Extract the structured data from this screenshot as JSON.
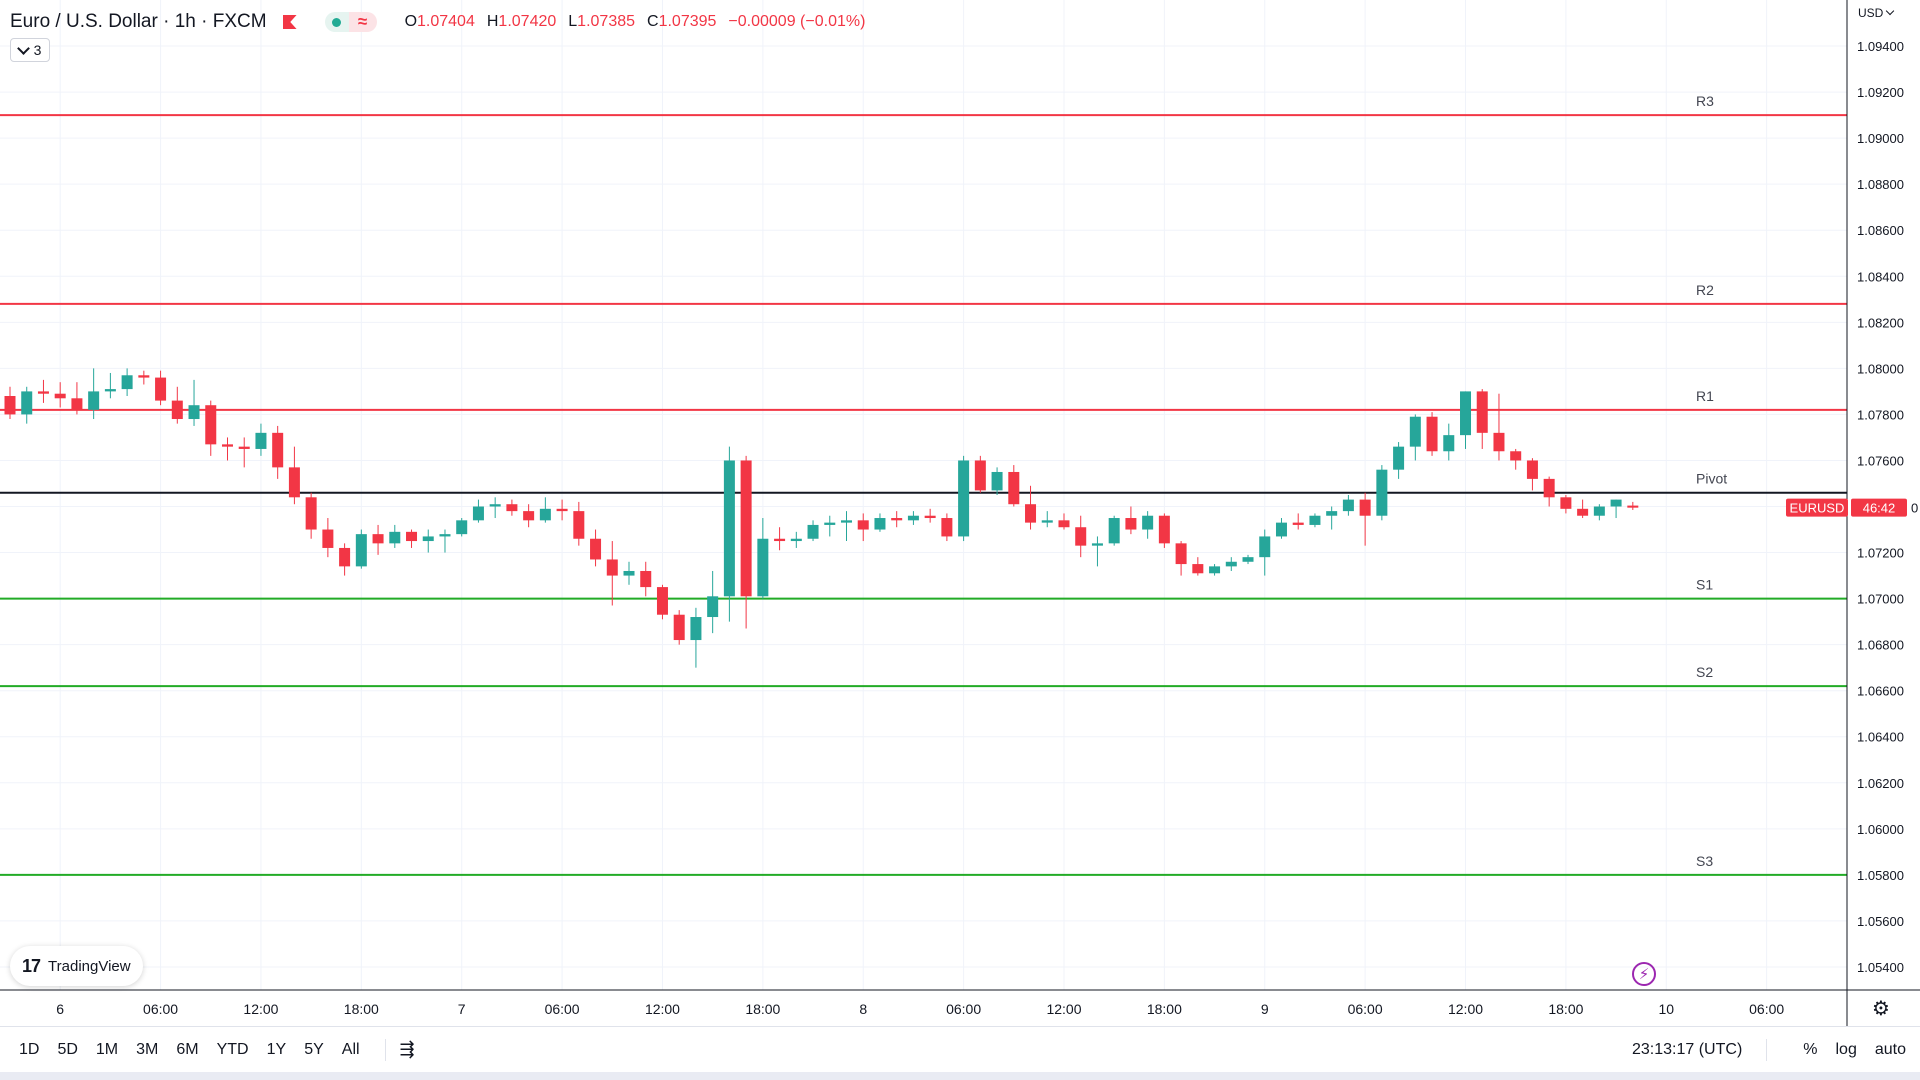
{
  "header": {
    "symbol_title": "Euro / U.S. Dollar · 1h · FXCM",
    "wave_symbol": "≈",
    "ohlc": [
      {
        "label": "O",
        "value": "1.07404"
      },
      {
        "label": "H",
        "value": "1.07420"
      },
      {
        "label": "L",
        "value": "1.07385"
      },
      {
        "label": "C",
        "value": "1.07395"
      }
    ],
    "change": "−0.00009 (−0.01%)",
    "indicator_count": "3",
    "currency": "USD"
  },
  "badges": {
    "symbol": "EURUSD",
    "countdown": "46:42",
    "price_tail": "0"
  },
  "branding": {
    "logo_mark": "17",
    "logo_text": "TradingView"
  },
  "bottom": {
    "periods": [
      "1D",
      "5D",
      "1M",
      "3M",
      "6M",
      "YTD",
      "1Y",
      "5Y",
      "All"
    ],
    "clock": "23:13:17 (UTC)",
    "options": [
      "%",
      "log",
      "auto"
    ]
  },
  "icons": {
    "flag": "flag-icon",
    "status_dot": "market-open-dot-icon",
    "wave": "delayed-data-icon",
    "range": "date-range-icon",
    "bolt": "lightning-icon",
    "settings": "gear-icon"
  },
  "colors": {
    "up": "#26a69a",
    "down": "#f23645",
    "resistance": "#f23645",
    "support": "#22ab26",
    "pivot": "#131722"
  },
  "chart_data": {
    "type": "candlestick",
    "interval": "1h",
    "y_axis": {
      "min": 1.053,
      "max": 1.096,
      "ticks": [
        "1.09400",
        "1.09200",
        "1.09000",
        "1.08800",
        "1.08600",
        "1.08400",
        "1.08200",
        "1.08000",
        "1.07800",
        "1.07600",
        "1.07400",
        "1.07200",
        "1.07000",
        "1.06800",
        "1.06600",
        "1.06400",
        "1.06200",
        "1.06000",
        "1.05800",
        "1.05600",
        "1.05400"
      ]
    },
    "x_axis": {
      "first_bar_time": "2023-01-05T21:00Z",
      "ticks": [
        {
          "label": "6",
          "bar": 3
        },
        {
          "label": "06:00",
          "bar": 9
        },
        {
          "label": "12:00",
          "bar": 15
        },
        {
          "label": "18:00",
          "bar": 21
        },
        {
          "label": "7",
          "bar": 27
        },
        {
          "label": "06:00",
          "bar": 33
        },
        {
          "label": "12:00",
          "bar": 39
        },
        {
          "label": "18:00",
          "bar": 45
        },
        {
          "label": "8",
          "bar": 51
        },
        {
          "label": "06:00",
          "bar": 57
        },
        {
          "label": "12:00",
          "bar": 63
        },
        {
          "label": "18:00",
          "bar": 69
        },
        {
          "label": "9",
          "bar": 75
        },
        {
          "label": "06:00",
          "bar": 81
        },
        {
          "label": "12:00",
          "bar": 87
        },
        {
          "label": "18:00",
          "bar": 93
        },
        {
          "label": "10",
          "bar": 99
        },
        {
          "label": "06:00",
          "bar": 105
        }
      ]
    },
    "levels": [
      {
        "name": "R3",
        "value": 1.091,
        "kind": "resistance"
      },
      {
        "name": "R2",
        "value": 1.0828,
        "kind": "resistance"
      },
      {
        "name": "R1",
        "value": 1.0782,
        "kind": "resistance"
      },
      {
        "name": "Pivot",
        "value": 1.0746,
        "kind": "pivot"
      },
      {
        "name": "S1",
        "value": 1.07,
        "kind": "support"
      },
      {
        "name": "S2",
        "value": 1.0662,
        "kind": "support"
      },
      {
        "name": "S3",
        "value": 1.058,
        "kind": "support"
      }
    ],
    "ohlc": [
      [
        1.0788,
        1.0792,
        1.0778,
        1.078
      ],
      [
        1.078,
        1.0792,
        1.0776,
        1.079
      ],
      [
        1.079,
        1.0795,
        1.0785,
        1.0789
      ],
      [
        1.0789,
        1.0794,
        1.0783,
        1.0787
      ],
      [
        1.0787,
        1.0794,
        1.078,
        1.0782
      ],
      [
        1.0782,
        1.08,
        1.0778,
        1.079
      ],
      [
        1.079,
        1.0798,
        1.0787,
        1.0791
      ],
      [
        1.0791,
        1.08,
        1.0788,
        1.0797
      ],
      [
        1.0797,
        1.0799,
        1.0793,
        1.0796
      ],
      [
        1.0796,
        1.0799,
        1.0784,
        1.0786
      ],
      [
        1.0786,
        1.0792,
        1.0776,
        1.0778
      ],
      [
        1.0778,
        1.0795,
        1.0775,
        1.0784
      ],
      [
        1.0784,
        1.0786,
        1.0762,
        1.0767
      ],
      [
        1.0767,
        1.077,
        1.076,
        1.0766
      ],
      [
        1.0766,
        1.077,
        1.0757,
        1.0765
      ],
      [
        1.0765,
        1.0776,
        1.0762,
        1.0772
      ],
      [
        1.0772,
        1.0775,
        1.0752,
        1.0757
      ],
      [
        1.0757,
        1.0766,
        1.0741,
        1.0744
      ],
      [
        1.0744,
        1.0746,
        1.0726,
        1.073
      ],
      [
        1.073,
        1.0735,
        1.0718,
        1.0722
      ],
      [
        1.0722,
        1.0724,
        1.071,
        1.0714
      ],
      [
        1.0714,
        1.073,
        1.0713,
        1.0728
      ],
      [
        1.0728,
        1.0732,
        1.0719,
        1.0724
      ],
      [
        1.0724,
        1.0732,
        1.0722,
        1.0729
      ],
      [
        1.0729,
        1.073,
        1.0722,
        1.0725
      ],
      [
        1.0725,
        1.073,
        1.072,
        1.0727
      ],
      [
        1.0727,
        1.073,
        1.072,
        1.0728
      ],
      [
        1.0728,
        1.0735,
        1.0727,
        1.0734
      ],
      [
        1.0734,
        1.0743,
        1.0733,
        1.074
      ],
      [
        1.074,
        1.0744,
        1.0735,
        1.0741
      ],
      [
        1.0741,
        1.0743,
        1.0736,
        1.0738
      ],
      [
        1.0738,
        1.0741,
        1.0731,
        1.0734
      ],
      [
        1.0734,
        1.0744,
        1.0733,
        1.0739
      ],
      [
        1.0739,
        1.0743,
        1.0734,
        1.0738
      ],
      [
        1.0738,
        1.0742,
        1.0723,
        1.0726
      ],
      [
        1.0726,
        1.073,
        1.0714,
        1.0717
      ],
      [
        1.0717,
        1.0725,
        1.0697,
        1.071
      ],
      [
        1.071,
        1.0716,
        1.0706,
        1.0712
      ],
      [
        1.0712,
        1.0716,
        1.0701,
        1.0705
      ],
      [
        1.0705,
        1.0706,
        1.0691,
        1.0693
      ],
      [
        1.0693,
        1.0695,
        1.068,
        1.0682
      ],
      [
        1.0682,
        1.0696,
        1.067,
        1.0692
      ],
      [
        1.0692,
        1.0712,
        1.0685,
        1.0701
      ],
      [
        1.0701,
        1.0766,
        1.069,
        1.076
      ],
      [
        1.076,
        1.0762,
        1.0687,
        1.0701
      ],
      [
        1.0701,
        1.0735,
        1.07,
        1.0726
      ],
      [
        1.0726,
        1.0731,
        1.0721,
        1.0725
      ],
      [
        1.0725,
        1.0729,
        1.0722,
        1.0726
      ],
      [
        1.0726,
        1.0734,
        1.0725,
        1.0732
      ],
      [
        1.0732,
        1.0736,
        1.0727,
        1.0733
      ],
      [
        1.0733,
        1.0738,
        1.0725,
        1.0734
      ],
      [
        1.0734,
        1.0737,
        1.0725,
        1.073
      ],
      [
        1.073,
        1.0737,
        1.0729,
        1.0735
      ],
      [
        1.0735,
        1.0738,
        1.0731,
        1.0734
      ],
      [
        1.0734,
        1.0738,
        1.0732,
        1.0736
      ],
      [
        1.0736,
        1.0739,
        1.0733,
        1.0735
      ],
      [
        1.0735,
        1.0737,
        1.0725,
        1.0727
      ],
      [
        1.0727,
        1.0762,
        1.0725,
        1.076
      ],
      [
        1.076,
        1.0762,
        1.0746,
        1.0747
      ],
      [
        1.0747,
        1.0757,
        1.0745,
        1.0755
      ],
      [
        1.0755,
        1.0758,
        1.074,
        1.0741
      ],
      [
        1.0741,
        1.0749,
        1.073,
        1.0733
      ],
      [
        1.0733,
        1.0738,
        1.0731,
        1.0734
      ],
      [
        1.0734,
        1.0737,
        1.073,
        1.0731
      ],
      [
        1.0731,
        1.0736,
        1.0718,
        1.0723
      ],
      [
        1.0723,
        1.0727,
        1.0714,
        1.0724
      ],
      [
        1.0724,
        1.0736,
        1.0723,
        1.0735
      ],
      [
        1.0735,
        1.074,
        1.0728,
        1.073
      ],
      [
        1.073,
        1.0738,
        1.0726,
        1.0736
      ],
      [
        1.0736,
        1.0737,
        1.0722,
        1.0724
      ],
      [
        1.0724,
        1.0725,
        1.071,
        1.0715
      ],
      [
        1.0715,
        1.0718,
        1.071,
        1.0711
      ],
      [
        1.0711,
        1.0715,
        1.071,
        1.0714
      ],
      [
        1.0714,
        1.0718,
        1.0712,
        1.0716
      ],
      [
        1.0716,
        1.0719,
        1.0715,
        1.0718
      ],
      [
        1.0718,
        1.073,
        1.071,
        1.0727
      ],
      [
        1.0727,
        1.0735,
        1.0726,
        1.0733
      ],
      [
        1.0733,
        1.0737,
        1.073,
        1.0732
      ],
      [
        1.0732,
        1.0737,
        1.0731,
        1.0736
      ],
      [
        1.0736,
        1.074,
        1.073,
        1.0738
      ],
      [
        1.0738,
        1.0745,
        1.0736,
        1.0743
      ],
      [
        1.0743,
        1.0746,
        1.0723,
        1.0736
      ],
      [
        1.0736,
        1.0758,
        1.0734,
        1.0756
      ],
      [
        1.0756,
        1.0768,
        1.0752,
        1.0766
      ],
      [
        1.0766,
        1.078,
        1.076,
        1.0779
      ],
      [
        1.0779,
        1.0781,
        1.0762,
        1.0764
      ],
      [
        1.0764,
        1.0776,
        1.076,
        1.0771
      ],
      [
        1.0771,
        1.079,
        1.0765,
        1.079
      ],
      [
        1.079,
        1.0791,
        1.0765,
        1.0772
      ],
      [
        1.0772,
        1.0789,
        1.076,
        1.0764
      ],
      [
        1.0764,
        1.0765,
        1.0756,
        1.076
      ],
      [
        1.076,
        1.0761,
        1.0747,
        1.0752
      ],
      [
        1.0752,
        1.0753,
        1.074,
        1.0744
      ],
      [
        1.0744,
        1.0745,
        1.0737,
        1.0739
      ],
      [
        1.0739,
        1.0743,
        1.0735,
        1.0736
      ],
      [
        1.0736,
        1.0741,
        1.0734,
        1.074
      ],
      [
        1.074,
        1.0743,
        1.0735,
        1.0743
      ],
      [
        1.07404,
        1.0742,
        1.07385,
        1.07395
      ]
    ]
  }
}
